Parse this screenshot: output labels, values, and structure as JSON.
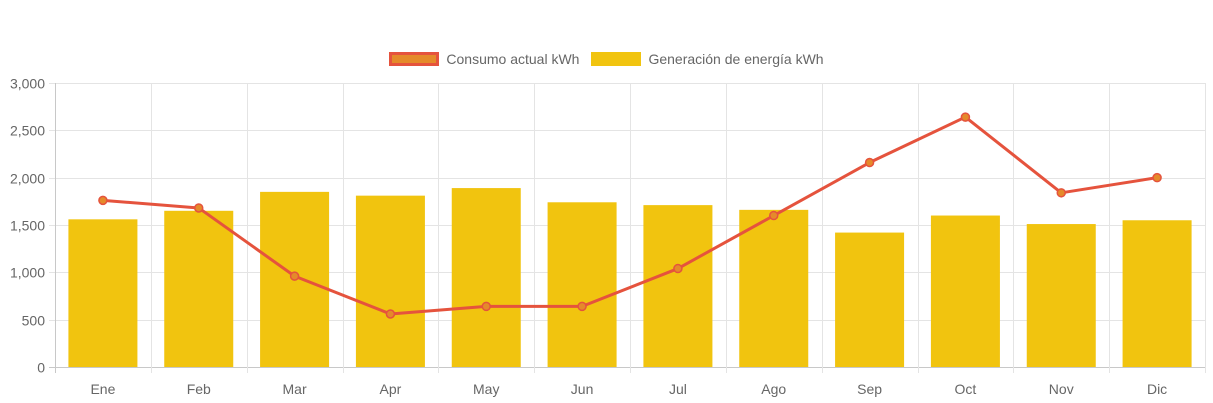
{
  "chart_data": {
    "type": "bar",
    "categories": [
      "Ene",
      "Feb",
      "Mar",
      "Apr",
      "May",
      "Jun",
      "Jul",
      "Ago",
      "Sep",
      "Oct",
      "Nov",
      "Dic"
    ],
    "series": [
      {
        "name": "Consumo actual kWh",
        "type": "line",
        "color": "#e5533d",
        "point_color": "#e58a2a",
        "values": [
          1760,
          1680,
          960,
          560,
          640,
          640,
          1040,
          1600,
          2160,
          2640,
          1840,
          2000
        ]
      },
      {
        "name": "Generación de energía kWh",
        "type": "bar",
        "color": "#f1c40f",
        "values": [
          1560,
          1650,
          1850,
          1810,
          1890,
          1740,
          1710,
          1660,
          1420,
          1600,
          1510,
          1550
        ]
      }
    ],
    "ylim": [
      0,
      3000
    ],
    "yticks": [
      0,
      500,
      1000,
      1500,
      2000,
      2500,
      3000
    ],
    "ytick_labels": [
      "0",
      "500",
      "1,000",
      "1,500",
      "2,000",
      "2,500",
      "3,000"
    ],
    "grid": true,
    "legend_position": "top-center",
    "title": "",
    "xlabel": "",
    "ylabel": ""
  }
}
